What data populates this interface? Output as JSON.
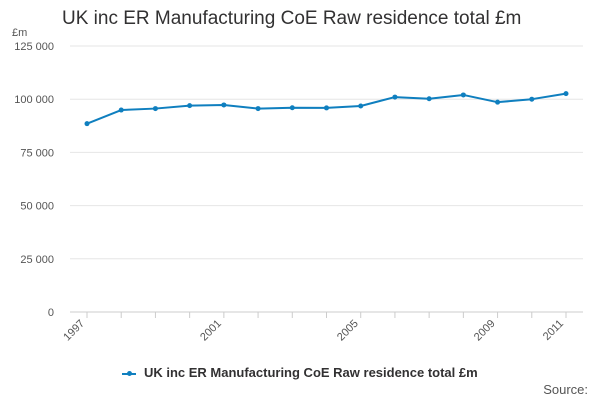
{
  "chart_data": {
    "type": "line",
    "title": "UK inc ER Manufacturing CoE Raw residence total £m",
    "ylabel": "£m",
    "xlabel": "",
    "x": [
      1997,
      1998,
      1999,
      2000,
      2001,
      2002,
      2003,
      2004,
      2005,
      2006,
      2007,
      2008,
      2009,
      2010,
      2011
    ],
    "series": [
      {
        "name": "UK inc ER Manufacturing CoE Raw residence total £m",
        "color": "#0f7fbf",
        "values": [
          88500,
          94900,
          95600,
          97000,
          97300,
          95600,
          96000,
          95900,
          96800,
          101000,
          100200,
          102000,
          98600,
          100000,
          102600
        ]
      }
    ],
    "ylim": [
      0,
      125000
    ],
    "yticks": [
      0,
      25000,
      50000,
      75000,
      100000,
      125000
    ],
    "ytick_labels": [
      "0",
      "25 000",
      "50 000",
      "75 000",
      "100 000",
      "125 000"
    ],
    "xticks_labeled": [
      1997,
      2001,
      2005,
      2009,
      2011
    ],
    "grid": true,
    "legend_position": "bottom"
  },
  "footer": {
    "source_label": "Source:"
  }
}
